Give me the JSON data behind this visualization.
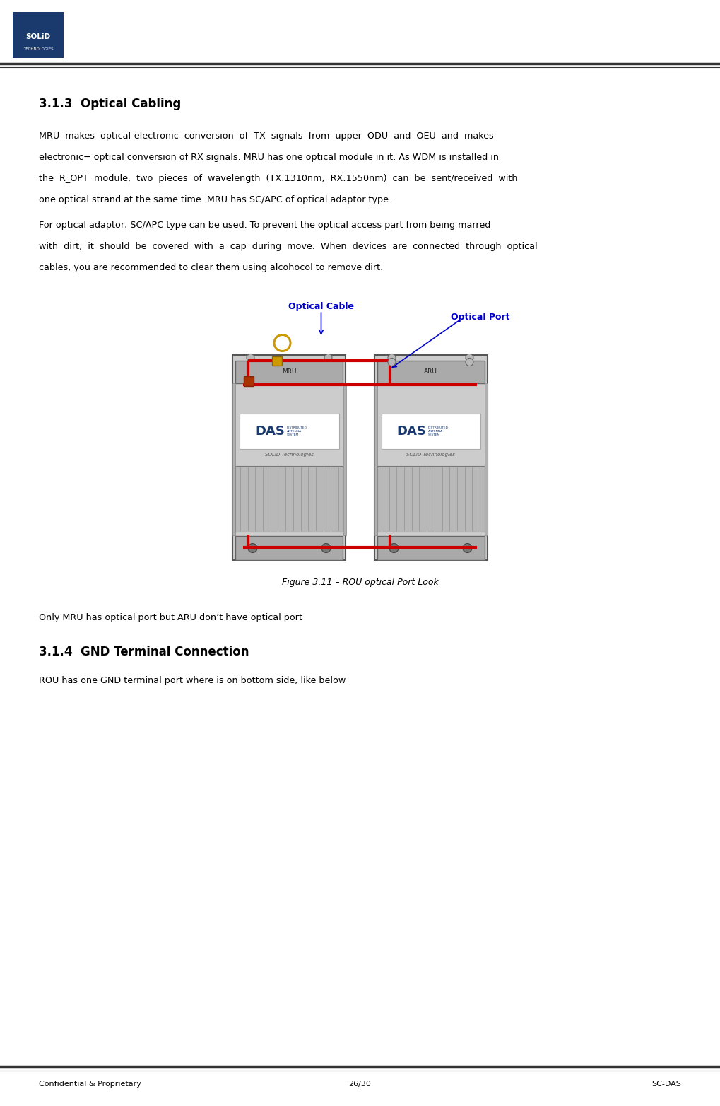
{
  "page_width": 10.19,
  "page_height": 15.64,
  "bg_color": "#ffffff",
  "logo_blue": "#1a3a6e",
  "footer_text_left": "Confidential & Proprietary",
  "footer_text_center": "26/30",
  "footer_text_right": "SC-DAS",
  "section_title": "3.1.3  Optical Cabling",
  "para1_line1": "MRU  makes  optical-electronic  conversion  of  TX  signals  from  upper  ODU  and  OEU  and  makes",
  "para1_line2": "electronic− optical conversion of RX signals. MRU has one optical module in it. As WDM is installed in",
  "para1_line3": "the  R_OPT  module,  two  pieces  of  wavelength  (TX:1310nm,  RX:1550nm)  can  be  sent/received  with",
  "para1_line4": "one optical strand at the same time. MRU has SC/APC of optical adaptor type.",
  "para2_line1": "For optical adaptor, SC/APC type can be used. To prevent the optical access part from being marred",
  "para2_line2": "with  dirt,  it  should  be  covered  with  a  cap  during  move.  When  devices  are  connected  through  optical",
  "para2_line3": "cables, you are recommended to clear them using alcohocol to remove dirt.",
  "optical_cable_label": "Optical Cable",
  "optical_port_label": "Optical Port",
  "fig_caption": "Figure 3.11 – ROU optical Port Look",
  "note_text": "Only MRU has optical port but ARU don’t have optical port",
  "section2_title": "3.1.4  GND Terminal Connection",
  "section2_para": "ROU has one GND terminal port where is on bottom side, like below",
  "label_color": "#0000cc",
  "mru_label": "MRU",
  "aru_label": "ARU",
  "das_text": "DAS",
  "solid_text": "SOLiD Technologies",
  "cable_color": "#cc0000",
  "connector_color": "#cc9900",
  "logo_solid_top": "SOLiD",
  "logo_solid_bottom": "TECHNOLOGIES"
}
